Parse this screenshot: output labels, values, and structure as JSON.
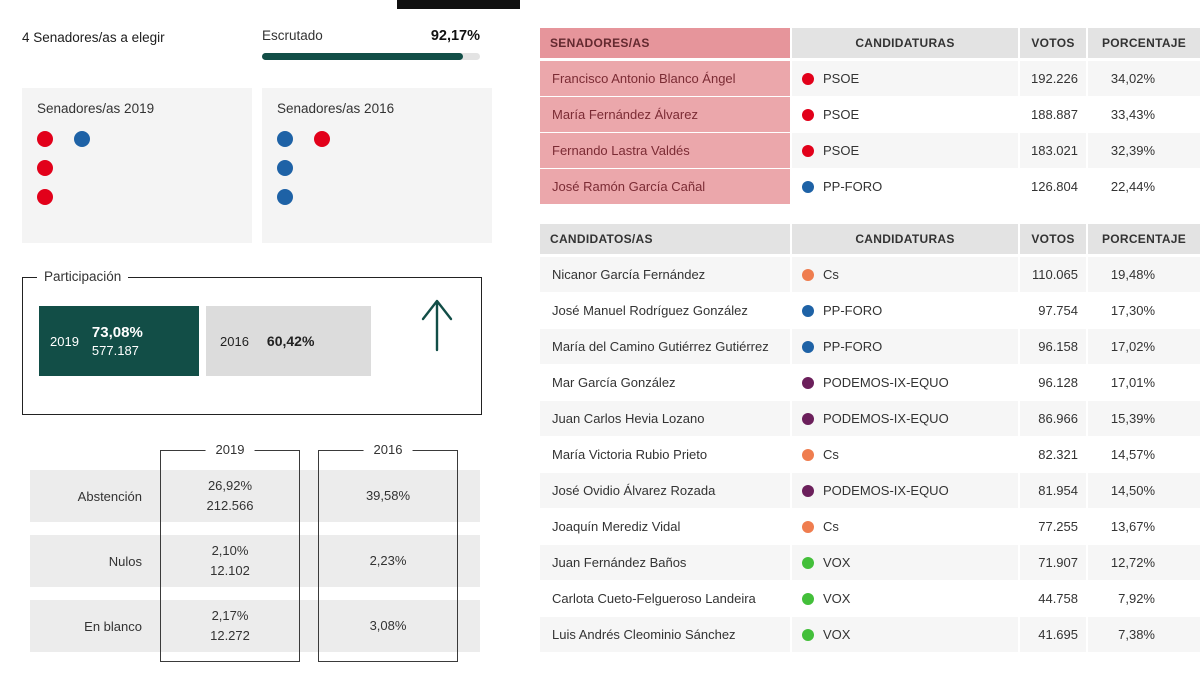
{
  "chart_data": [
    {
      "type": "bar",
      "title": "Escrutado",
      "categories": [
        "Escrutado"
      ],
      "values": [
        92.17
      ],
      "unit": "%"
    },
    {
      "type": "pie",
      "title": "Senadores/as 2019",
      "labels": [
        "PSOE",
        "PP-FORO"
      ],
      "values": [
        3,
        1
      ],
      "colors": [
        "#e2001a",
        "#1e62a6"
      ]
    },
    {
      "type": "pie",
      "title": "Senadores/as 2016",
      "labels": [
        "PP-FORO",
        "PSOE"
      ],
      "values": [
        3,
        1
      ],
      "colors": [
        "#1e62a6",
        "#e2001a"
      ]
    },
    {
      "type": "bar",
      "title": "Participación",
      "categories": [
        "2019",
        "2016"
      ],
      "values": [
        73.08,
        60.42
      ],
      "annotations": [
        "2019: 577.187 votos",
        "trend: up"
      ],
      "unit": "%"
    },
    {
      "type": "table",
      "title": "Abstención / Nulos / En blanco",
      "columns": [
        "",
        "2019 %",
        "2019 votos",
        "2016 %"
      ],
      "rows": [
        [
          "Abstención",
          "26,92%",
          "212.566",
          "39,58%"
        ],
        [
          "Nulos",
          "2,10%",
          "12.102",
          "2,23%"
        ],
        [
          "En blanco",
          "2,17%",
          "12.272",
          "3,08%"
        ]
      ]
    },
    {
      "type": "table",
      "title": "SENADORES/AS",
      "columns": [
        "SENADORES/AS",
        "CANDIDATURAS",
        "VOTOS",
        "PORCENTAJE"
      ],
      "rows": [
        [
          "Francisco Antonio Blanco Ángel",
          "PSOE",
          "192.226",
          "34,02%"
        ],
        [
          "María Fernández Álvarez",
          "PSOE",
          "188.887",
          "33,43%"
        ],
        [
          "Fernando Lastra Valdés",
          "PSOE",
          "183.021",
          "32,39%"
        ],
        [
          "José Ramón García Cañal",
          "PP-FORO",
          "126.804",
          "22,44%"
        ]
      ]
    },
    {
      "type": "table",
      "title": "CANDIDATOS/AS",
      "columns": [
        "CANDIDATOS/AS",
        "CANDIDATURAS",
        "VOTOS",
        "PORCENTAJE"
      ],
      "rows": [
        [
          "Nicanor García Fernández",
          "Cs",
          "110.065",
          "19,48%"
        ],
        [
          "José Manuel Rodríguez González",
          "PP-FORO",
          "97.754",
          "17,30%"
        ],
        [
          "María del Camino Gutiérrez Gutiérrez",
          "PP-FORO",
          "96.158",
          "17,02%"
        ],
        [
          "Mar García González",
          "PODEMOS-IX-EQUO",
          "96.128",
          "17,01%"
        ],
        [
          "Juan Carlos Hevia Lozano",
          "PODEMOS-IX-EQUO",
          "86.966",
          "15,39%"
        ],
        [
          "María Victoria Rubio Prieto",
          "Cs",
          "82.321",
          "14,57%"
        ],
        [
          "José Ovidio Álvarez Rozada",
          "PODEMOS-IX-EQUO",
          "81.954",
          "14,50%"
        ],
        [
          "Joaquín Merediz Vidal",
          "Cs",
          "77.255",
          "13,67%"
        ],
        [
          "Juan Fernández Baños",
          "VOX",
          "71.907",
          "12,72%"
        ],
        [
          "Carlota Cueto-Felgueroso Landeira",
          "VOX",
          "44.758",
          "7,92%"
        ],
        [
          "Luis Andrés Cleominio Sánchez",
          "VOX",
          "41.695",
          "7,38%"
        ]
      ]
    }
  ],
  "colors": {
    "accent_teal": "#124e47",
    "pink_header": "#e6959b",
    "pink_row": "#eba7ab",
    "psoe": "#e2001a",
    "pp_foro": "#1e62a6",
    "cs": "#ef7d4f",
    "podemos": "#6b1f5b",
    "vox": "#43bf3a"
  },
  "summary": {
    "seats_title": "4 Senadores/as a elegir",
    "escrutado_label": "Escrutado",
    "escrutado_value": "92,17%",
    "escrutado_pct": 92.17
  },
  "seats_2019": {
    "title": "Senadores/as 2019",
    "dot_rows": [
      [
        "#e2001a",
        "#1e62a6"
      ],
      [
        "#e2001a"
      ],
      [
        "#e2001a"
      ]
    ]
  },
  "seats_2016": {
    "title": "Senadores/as 2016",
    "dot_rows": [
      [
        "#1e62a6",
        "#e2001a"
      ],
      [
        "#1e62a6"
      ],
      [
        "#1e62a6"
      ]
    ]
  },
  "participacion": {
    "title": "Participación",
    "y2019": {
      "year": "2019",
      "pct": "73,08%",
      "votes": "577.187"
    },
    "y2016": {
      "year": "2016",
      "pct": "60,42%"
    },
    "trend": "up"
  },
  "breakdown": {
    "columns": [
      "2019",
      "2016"
    ],
    "rows": [
      {
        "label": "Abstención",
        "pct_2019": "26,92%",
        "count_2019": "212.566",
        "pct_2016": "39,58%"
      },
      {
        "label": "Nulos",
        "pct_2019": "2,10%",
        "count_2019": "12.102",
        "pct_2016": "2,23%"
      },
      {
        "label": "En blanco",
        "pct_2019": "2,17%",
        "count_2019": "12.272",
        "pct_2016": "3,08%"
      }
    ]
  },
  "senadores_table": {
    "headers": [
      "SENADORES/AS",
      "CANDIDATURAS",
      "VOTOS",
      "PORCENTAJE"
    ],
    "rows": [
      {
        "name": "Francisco Antonio Blanco Ángel",
        "party": "PSOE",
        "party_color": "#e2001a",
        "votes": "192.226",
        "pct": "34,02%"
      },
      {
        "name": "María Fernández Álvarez",
        "party": "PSOE",
        "party_color": "#e2001a",
        "votes": "188.887",
        "pct": "33,43%"
      },
      {
        "name": "Fernando Lastra Valdés",
        "party": "PSOE",
        "party_color": "#e2001a",
        "votes": "183.021",
        "pct": "32,39%"
      },
      {
        "name": "José Ramón García Cañal",
        "party": "PP-FORO",
        "party_color": "#1e62a6",
        "votes": "126.804",
        "pct": "22,44%"
      }
    ]
  },
  "candidatos_table": {
    "headers": [
      "CANDIDATOS/AS",
      "CANDIDATURAS",
      "VOTOS",
      "PORCENTAJE"
    ],
    "rows": [
      {
        "name": "Nicanor García Fernández",
        "party": "Cs",
        "party_color": "#ef7d4f",
        "votes": "110.065",
        "pct": "19,48%"
      },
      {
        "name": "José Manuel Rodríguez González",
        "party": "PP-FORO",
        "party_color": "#1e62a6",
        "votes": "97.754",
        "pct": "17,30%"
      },
      {
        "name": "María del Camino Gutiérrez Gutiérrez",
        "party": "PP-FORO",
        "party_color": "#1e62a6",
        "votes": "96.158",
        "pct": "17,02%"
      },
      {
        "name": "Mar García González",
        "party": "PODEMOS-IX-EQUO",
        "party_color": "#6b1f5b",
        "votes": "96.128",
        "pct": "17,01%"
      },
      {
        "name": "Juan Carlos Hevia Lozano",
        "party": "PODEMOS-IX-EQUO",
        "party_color": "#6b1f5b",
        "votes": "86.966",
        "pct": "15,39%"
      },
      {
        "name": "María Victoria Rubio Prieto",
        "party": "Cs",
        "party_color": "#ef7d4f",
        "votes": "82.321",
        "pct": "14,57%"
      },
      {
        "name": "José Ovidio Álvarez Rozada",
        "party": "PODEMOS-IX-EQUO",
        "party_color": "#6b1f5b",
        "votes": "81.954",
        "pct": "14,50%"
      },
      {
        "name": "Joaquín Merediz Vidal",
        "party": "Cs",
        "party_color": "#ef7d4f",
        "votes": "77.255",
        "pct": "13,67%"
      },
      {
        "name": "Juan Fernández Baños",
        "party": "VOX",
        "party_color": "#43bf3a",
        "votes": "71.907",
        "pct": "12,72%"
      },
      {
        "name": "Carlota Cueto-Felgueroso Landeira",
        "party": "VOX",
        "party_color": "#43bf3a",
        "votes": "44.758",
        "pct": "7,92%"
      },
      {
        "name": "Luis Andrés Cleominio Sánchez",
        "party": "VOX",
        "party_color": "#43bf3a",
        "votes": "41.695",
        "pct": "7,38%"
      }
    ]
  }
}
